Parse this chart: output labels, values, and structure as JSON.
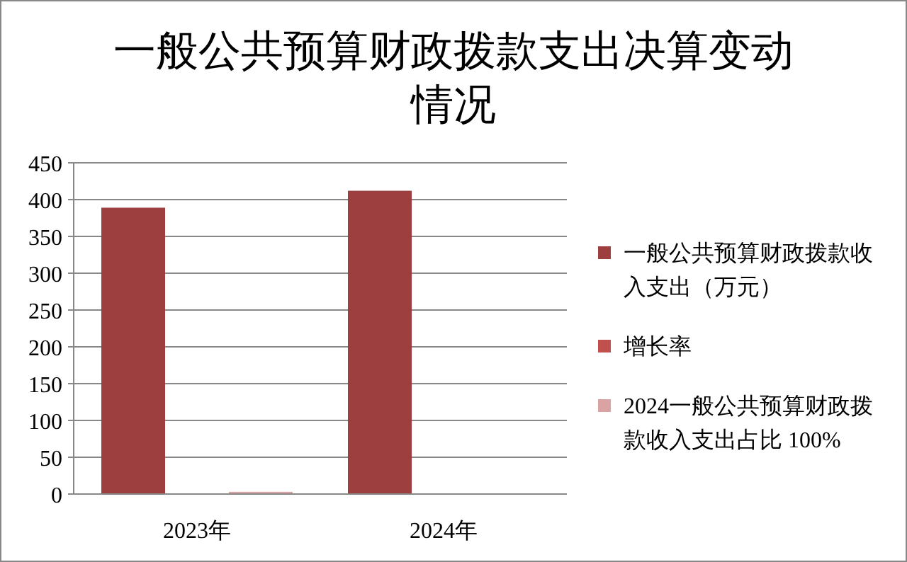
{
  "chart_data": {
    "type": "bar",
    "title": "一般公共预算财政拨款支出决算变动情况",
    "categories": [
      "2023年",
      "2024年"
    ],
    "series": [
      {
        "name": "一般公共预算财政拨款收入支出（万元）",
        "color": "#9c3f3e",
        "values": [
          389,
          412
        ]
      },
      {
        "name": "增长率",
        "color": "#c0504d",
        "values": [
          null,
          null
        ]
      },
      {
        "name": "2024一般公共预算财政拨款收入支出占比 100%",
        "color": "#d9a3a3",
        "values": [
          3,
          null
        ]
      }
    ],
    "ylim": [
      0,
      450
    ],
    "yticks": [
      0,
      50,
      100,
      150,
      200,
      250,
      300,
      350,
      400,
      450
    ],
    "grid": "y",
    "legend": "right"
  }
}
